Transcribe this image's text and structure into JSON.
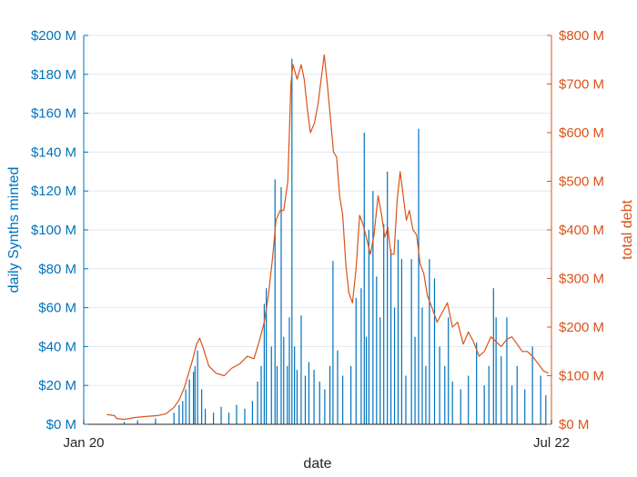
{
  "chart_data": {
    "type": "bar+line",
    "title": "",
    "xlabel": "date",
    "ylabel_left": "daily Synths minted",
    "ylabel_right": "total debt",
    "x_range": [
      "2020-01-01",
      "2022-07-01"
    ],
    "x_ticks": [
      {
        "date": "2020-01-01",
        "label": "Jan 20"
      },
      {
        "date": "2022-07-01",
        "label": "Jul 22"
      }
    ],
    "ylim_left": [
      0,
      200
    ],
    "ylim_right": [
      0,
      800
    ],
    "y_ticks_left": [
      "$0 M",
      "$20 M",
      "$40 M",
      "$60 M",
      "$80 M",
      "$100 M",
      "$120 M",
      "$140 M",
      "$160 M",
      "$180 M",
      "$200 M"
    ],
    "y_ticks_right": [
      "$0 M",
      "$100 M",
      "$200 M",
      "$300 M",
      "$400 M",
      "$500 M",
      "$600 M",
      "$700 M",
      "$800 M"
    ],
    "grid": true,
    "colors": {
      "left": "#0072BD",
      "right": "#D95319",
      "grid": "#dfe9f2",
      "axis_x": "#262626"
    },
    "series": [
      {
        "type": "bar",
        "axis": "left",
        "units": "$ M",
        "note": "daily Synths minted; baseline noise omitted, notable spikes",
        "points": [
          [
            "2020-03-20",
            1.2
          ],
          [
            "2020-04-15",
            2.0
          ],
          [
            "2020-05-20",
            3.0
          ],
          [
            "2020-06-25",
            6.0
          ],
          [
            "2020-07-05",
            10.0
          ],
          [
            "2020-07-12",
            12.0
          ],
          [
            "2020-07-18",
            18.0
          ],
          [
            "2020-07-25",
            23.0
          ],
          [
            "2020-08-02",
            27.0
          ],
          [
            "2020-08-05",
            30.0
          ],
          [
            "2020-08-10",
            38.0
          ],
          [
            "2020-08-18",
            18.0
          ],
          [
            "2020-08-25",
            8.0
          ],
          [
            "2020-09-10",
            6.0
          ],
          [
            "2020-09-25",
            9.0
          ],
          [
            "2020-10-10",
            6.0
          ],
          [
            "2020-10-25",
            10.0
          ],
          [
            "2020-11-10",
            8.0
          ],
          [
            "2020-11-25",
            12.0
          ],
          [
            "2020-12-05",
            22.0
          ],
          [
            "2020-12-12",
            30.0
          ],
          [
            "2020-12-18",
            62.0
          ],
          [
            "2020-12-22",
            70.0
          ],
          [
            "2021-01-01",
            40.0
          ],
          [
            "2021-01-08",
            126.0
          ],
          [
            "2021-01-12",
            30.0
          ],
          [
            "2021-01-20",
            122.0
          ],
          [
            "2021-01-25",
            45.0
          ],
          [
            "2021-02-01",
            30.0
          ],
          [
            "2021-02-05",
            55.0
          ],
          [
            "2021-02-10",
            188.0
          ],
          [
            "2021-02-15",
            40.0
          ],
          [
            "2021-02-20",
            28.0
          ],
          [
            "2021-02-28",
            56.0
          ],
          [
            "2021-03-08",
            25.0
          ],
          [
            "2021-03-15",
            32.0
          ],
          [
            "2021-03-25",
            28.0
          ],
          [
            "2021-04-05",
            22.0
          ],
          [
            "2021-04-15",
            18.0
          ],
          [
            "2021-04-25",
            30.0
          ],
          [
            "2021-05-01",
            84.0
          ],
          [
            "2021-05-10",
            38.0
          ],
          [
            "2021-05-20",
            25.0
          ],
          [
            "2021-06-05",
            30.0
          ],
          [
            "2021-06-15",
            65.0
          ],
          [
            "2021-06-25",
            70.0
          ],
          [
            "2021-07-01",
            150.0
          ],
          [
            "2021-07-05",
            45.0
          ],
          [
            "2021-07-10",
            100.0
          ],
          [
            "2021-07-18",
            120.0
          ],
          [
            "2021-07-25",
            76.0
          ],
          [
            "2021-08-01",
            55.0
          ],
          [
            "2021-08-08",
            103.0
          ],
          [
            "2021-08-15",
            130.0
          ],
          [
            "2021-08-22",
            90.0
          ],
          [
            "2021-08-29",
            60.0
          ],
          [
            "2021-09-05",
            95.0
          ],
          [
            "2021-09-12",
            85.0
          ],
          [
            "2021-09-20",
            25.0
          ],
          [
            "2021-10-01",
            85.0
          ],
          [
            "2021-10-08",
            45.0
          ],
          [
            "2021-10-15",
            152.0
          ],
          [
            "2021-10-22",
            60.0
          ],
          [
            "2021-10-29",
            30.0
          ],
          [
            "2021-11-05",
            85.0
          ],
          [
            "2021-11-15",
            75.0
          ],
          [
            "2021-11-25",
            40.0
          ],
          [
            "2021-12-05",
            30.0
          ],
          [
            "2021-12-12",
            55.0
          ],
          [
            "2021-12-20",
            22.0
          ],
          [
            "2022-01-05",
            18.0
          ],
          [
            "2022-01-20",
            25.0
          ],
          [
            "2022-02-05",
            42.0
          ],
          [
            "2022-02-20",
            20.0
          ],
          [
            "2022-03-01",
            30.0
          ],
          [
            "2022-03-10",
            70.0
          ],
          [
            "2022-03-15",
            55.0
          ],
          [
            "2022-03-25",
            35.0
          ],
          [
            "2022-04-05",
            55.0
          ],
          [
            "2022-04-15",
            20.0
          ],
          [
            "2022-04-25",
            30.0
          ],
          [
            "2022-05-10",
            18.0
          ],
          [
            "2022-05-25",
            40.0
          ],
          [
            "2022-06-10",
            25.0
          ],
          [
            "2022-06-20",
            15.0
          ]
        ]
      },
      {
        "type": "line",
        "axis": "right",
        "units": "$ M",
        "note": "total debt",
        "points": [
          [
            "2020-02-15",
            20
          ],
          [
            "2020-03-01",
            18
          ],
          [
            "2020-03-05",
            12
          ],
          [
            "2020-03-20",
            10
          ],
          [
            "2020-04-10",
            14
          ],
          [
            "2020-05-01",
            16
          ],
          [
            "2020-05-25",
            18
          ],
          [
            "2020-06-10",
            22
          ],
          [
            "2020-06-25",
            35
          ],
          [
            "2020-07-05",
            50
          ],
          [
            "2020-07-15",
            75
          ],
          [
            "2020-07-25",
            110
          ],
          [
            "2020-08-01",
            135
          ],
          [
            "2020-08-08",
            165
          ],
          [
            "2020-08-14",
            177
          ],
          [
            "2020-08-20",
            160
          ],
          [
            "2020-09-01",
            120
          ],
          [
            "2020-09-15",
            105
          ],
          [
            "2020-10-01",
            100
          ],
          [
            "2020-10-15",
            115
          ],
          [
            "2020-11-01",
            125
          ],
          [
            "2020-11-15",
            140
          ],
          [
            "2020-11-28",
            135
          ],
          [
            "2020-12-08",
            170
          ],
          [
            "2020-12-18",
            210
          ],
          [
            "2020-12-26",
            265
          ],
          [
            "2021-01-03",
            340
          ],
          [
            "2021-01-10",
            420
          ],
          [
            "2021-01-18",
            440
          ],
          [
            "2021-01-25",
            440
          ],
          [
            "2021-02-02",
            500
          ],
          [
            "2021-02-08",
            700
          ],
          [
            "2021-02-12",
            740
          ],
          [
            "2021-02-20",
            710
          ],
          [
            "2021-02-28",
            740
          ],
          [
            "2021-03-06",
            710
          ],
          [
            "2021-03-12",
            650
          ],
          [
            "2021-03-18",
            600
          ],
          [
            "2021-03-26",
            620
          ],
          [
            "2021-04-02",
            660
          ],
          [
            "2021-04-08",
            710
          ],
          [
            "2021-04-14",
            760
          ],
          [
            "2021-04-20",
            700
          ],
          [
            "2021-04-26",
            630
          ],
          [
            "2021-05-02",
            560
          ],
          [
            "2021-05-08",
            550
          ],
          [
            "2021-05-14",
            470
          ],
          [
            "2021-05-20",
            430
          ],
          [
            "2021-05-26",
            330
          ],
          [
            "2021-06-01",
            270
          ],
          [
            "2021-06-08",
            250
          ],
          [
            "2021-06-15",
            320
          ],
          [
            "2021-06-22",
            430
          ],
          [
            "2021-06-29",
            410
          ],
          [
            "2021-07-06",
            380
          ],
          [
            "2021-07-13",
            350
          ],
          [
            "2021-07-20",
            390
          ],
          [
            "2021-07-28",
            470
          ],
          [
            "2021-08-04",
            430
          ],
          [
            "2021-08-10",
            385
          ],
          [
            "2021-08-16",
            405
          ],
          [
            "2021-08-22",
            350
          ],
          [
            "2021-08-28",
            350
          ],
          [
            "2021-09-03",
            460
          ],
          [
            "2021-09-09",
            520
          ],
          [
            "2021-09-15",
            470
          ],
          [
            "2021-09-21",
            420
          ],
          [
            "2021-09-27",
            440
          ],
          [
            "2021-10-04",
            400
          ],
          [
            "2021-10-11",
            390
          ],
          [
            "2021-10-18",
            330
          ],
          [
            "2021-10-25",
            310
          ],
          [
            "2021-11-01",
            265
          ],
          [
            "2021-11-10",
            240
          ],
          [
            "2021-11-20",
            210
          ],
          [
            "2021-11-30",
            230
          ],
          [
            "2021-12-10",
            250
          ],
          [
            "2021-12-20",
            200
          ],
          [
            "2021-12-30",
            210
          ],
          [
            "2022-01-10",
            165
          ],
          [
            "2022-01-20",
            190
          ],
          [
            "2022-01-30",
            170
          ],
          [
            "2022-02-10",
            140
          ],
          [
            "2022-02-20",
            150
          ],
          [
            "2022-03-05",
            180
          ],
          [
            "2022-03-15",
            170
          ],
          [
            "2022-03-25",
            160
          ],
          [
            "2022-04-05",
            175
          ],
          [
            "2022-04-15",
            180
          ],
          [
            "2022-04-25",
            165
          ],
          [
            "2022-05-05",
            150
          ],
          [
            "2022-05-15",
            150
          ],
          [
            "2022-05-25",
            140
          ],
          [
            "2022-06-05",
            125
          ],
          [
            "2022-06-15",
            110
          ],
          [
            "2022-06-25",
            105
          ]
        ]
      }
    ]
  }
}
